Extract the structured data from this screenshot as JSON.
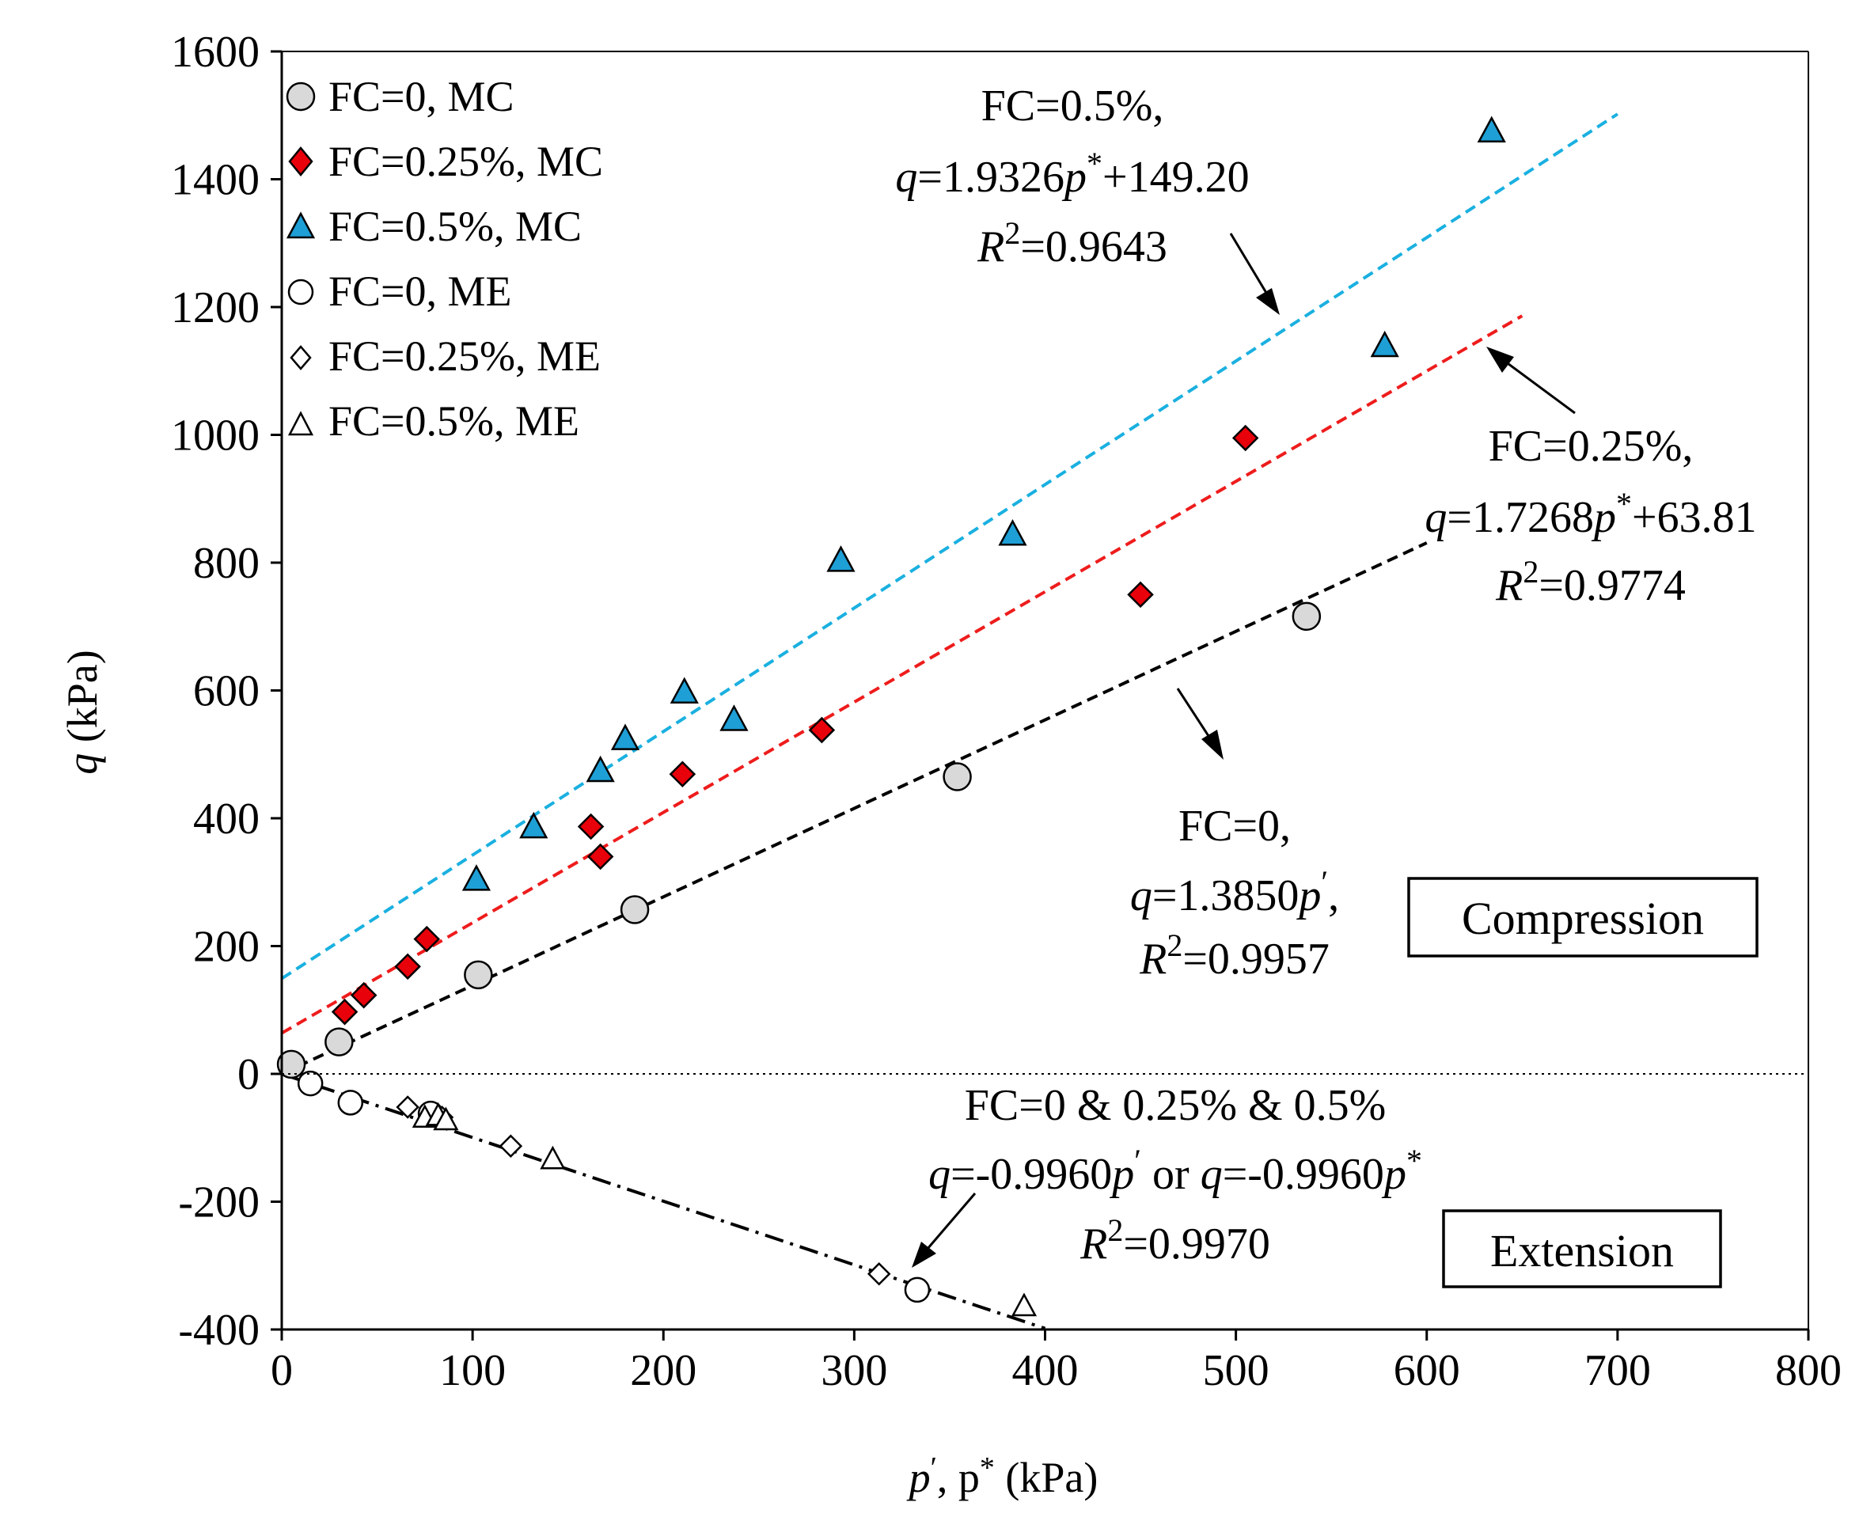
{
  "chart_data": {
    "type": "scatter",
    "xlabel_parts": [
      "p",
      "′",
      ", p",
      "*",
      " (kPa)"
    ],
    "ylabel_parts": [
      "q",
      " (kPa)"
    ],
    "xlim": [
      0,
      800
    ],
    "ylim": [
      -400,
      1600
    ],
    "xticks": [
      0,
      100,
      200,
      300,
      400,
      500,
      600,
      700,
      800
    ],
    "yticks": [
      -400,
      -200,
      0,
      200,
      400,
      600,
      800,
      1000,
      1200,
      1400,
      1600
    ],
    "grid": false,
    "legend_position": "top-left",
    "series": [
      {
        "name": "FC=0, MC",
        "marker": "circle",
        "fill": "#d9d9d9",
        "points": [
          [
            5,
            15
          ],
          [
            30,
            50
          ],
          [
            103,
            155
          ],
          [
            185,
            257
          ],
          [
            354,
            465
          ],
          [
            537,
            716
          ]
        ]
      },
      {
        "name": "FC=0.25%, MC",
        "marker": "diamond",
        "fill": "#e8000a",
        "points": [
          [
            33,
            97
          ],
          [
            43,
            123
          ],
          [
            66,
            168
          ],
          [
            76,
            211
          ],
          [
            162,
            387
          ],
          [
            167,
            340
          ],
          [
            210,
            469
          ],
          [
            283,
            538
          ],
          [
            450,
            750
          ],
          [
            505,
            995
          ]
        ]
      },
      {
        "name": "FC=0.5%, MC",
        "marker": "triangle",
        "fill": "#1e9fd6",
        "points": [
          [
            102,
            305
          ],
          [
            132,
            387
          ],
          [
            167,
            475
          ],
          [
            180,
            525
          ],
          [
            211,
            598
          ],
          [
            237,
            555
          ],
          [
            293,
            804
          ],
          [
            383,
            845
          ],
          [
            578,
            1140
          ],
          [
            634,
            1476
          ]
        ]
      },
      {
        "name": "FC=0, ME",
        "marker": "circle",
        "fill": "#ffffff",
        "points": [
          [
            15,
            -15
          ],
          [
            36,
            -45
          ],
          [
            78,
            -62
          ],
          [
            333,
            -338
          ]
        ]
      },
      {
        "name": "FC=0.25%, ME",
        "marker": "diamond",
        "fill": "#ffffff",
        "points": [
          [
            66,
            -52
          ],
          [
            84,
            -68
          ],
          [
            120,
            -113
          ],
          [
            313,
            -313
          ]
        ]
      },
      {
        "name": "FC=0.5%, ME",
        "marker": "triangle",
        "fill": "#ffffff",
        "points": [
          [
            75,
            -68
          ],
          [
            82,
            -65
          ],
          [
            86,
            -72
          ],
          [
            142,
            -133
          ],
          [
            389,
            -363
          ]
        ]
      }
    ],
    "trendlines": [
      {
        "color": "#1ab0e0",
        "style": "dash",
        "x": [
          0,
          700
        ],
        "slope": 1.9326,
        "intercept": 149.2
      },
      {
        "color": "#ee1c1c",
        "style": "dash",
        "x": [
          0,
          650
        ],
        "slope": 1.7268,
        "intercept": 63.81
      },
      {
        "color": "#000000",
        "style": "dash",
        "x": [
          0,
          600
        ],
        "slope": 1.385,
        "intercept": 0
      },
      {
        "color": "#000000",
        "style": "dashdot",
        "x": [
          0,
          400
        ],
        "slope": -0.996,
        "intercept": 0
      }
    ],
    "annotations": {
      "fc05": {
        "line1": "FC=0.5%,",
        "eq_parts": [
          "q",
          "=1.9326",
          "p",
          "*",
          "+149.20"
        ],
        "r2_parts": [
          "R",
          "2",
          "=0.9643"
        ]
      },
      "fc025": {
        "line1": "FC=0.25%,",
        "eq_parts": [
          "q",
          "=1.7268",
          "p",
          "*",
          "+63.81"
        ],
        "r2_parts": [
          "R",
          "2",
          "=0.9774"
        ]
      },
      "fc0": {
        "line1": "FC=0,",
        "eq_parts": [
          "q",
          "=1.3850",
          "p",
          "′",
          ","
        ],
        "r2_parts": [
          "R",
          "2",
          "=0.9957"
        ]
      },
      "ext": {
        "line1": "FC=0 & 0.25% & 0.5%",
        "eq_parts": [
          "q",
          "=-0.9960",
          "p",
          "′",
          " or ",
          "q",
          "=-0.9960",
          "p",
          "*"
        ],
        "r2_parts": [
          "R",
          "2",
          "=0.9970"
        ]
      }
    },
    "boxes": {
      "compression": "Compression",
      "extension": "Extension"
    }
  }
}
